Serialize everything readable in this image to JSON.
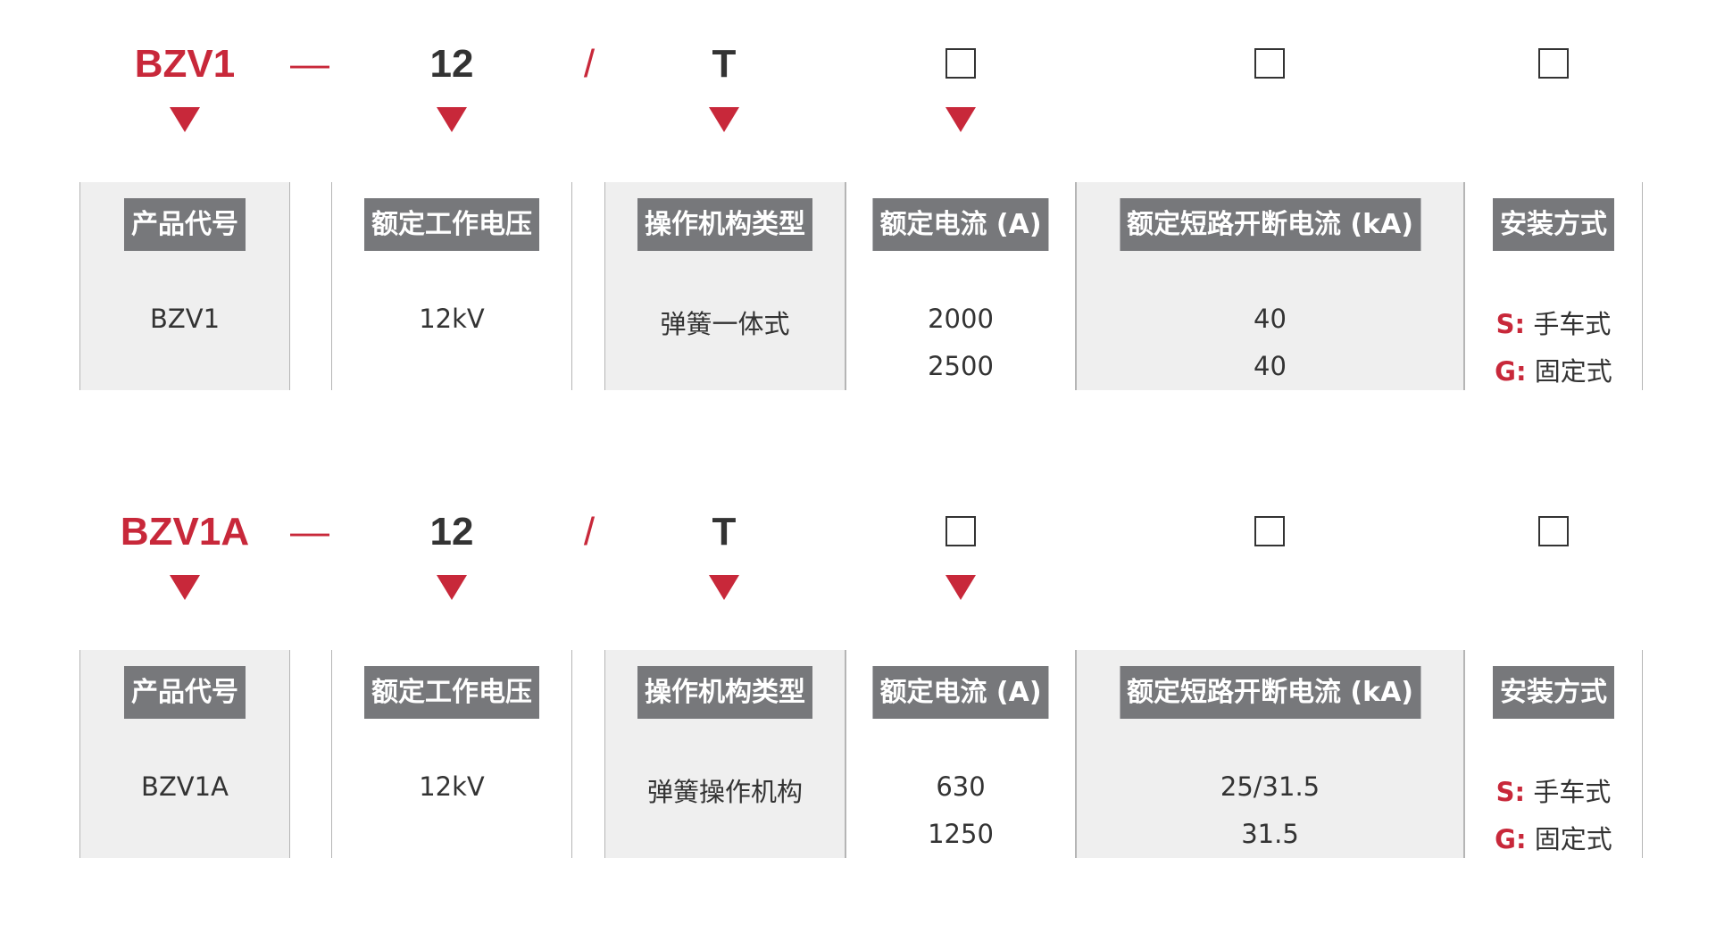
{
  "colors": {
    "accent": "#c8283a",
    "header_bg": "#77787b",
    "panel_bg": "#efefef",
    "text": "#333333"
  },
  "placeholder_icon": "empty-square-icon",
  "pointer_icon": "red-down-triangle-icon",
  "models": [
    {
      "code": {
        "product": "BZV1",
        "dash": "—",
        "voltage": "12",
        "slash": "/",
        "mechanism": "T"
      },
      "columns": [
        {
          "header": "产品代号",
          "values": [
            "BZV1"
          ]
        },
        {
          "header": "额定工作电压",
          "values": [
            "12kV"
          ]
        },
        {
          "header": "操作机构类型",
          "values": [
            "弹簧一体式"
          ]
        },
        {
          "header": "额定电流 (A)",
          "values": [
            "2000",
            "2500"
          ]
        },
        {
          "header": "额定短路开断电流 (kA)",
          "values": [
            "40",
            "40"
          ]
        },
        {
          "header": "安装方式",
          "options": [
            {
              "key": "S:",
              "label": "手车式"
            },
            {
              "key": "G:",
              "label": "固定式"
            }
          ]
        }
      ]
    },
    {
      "code": {
        "product": "BZV1A",
        "dash": "—",
        "voltage": "12",
        "slash": "/",
        "mechanism": "T"
      },
      "columns": [
        {
          "header": "产品代号",
          "values": [
            "BZV1A"
          ]
        },
        {
          "header": "额定工作电压",
          "values": [
            "12kV"
          ]
        },
        {
          "header": "操作机构类型",
          "values": [
            "弹簧操作机构"
          ]
        },
        {
          "header": "额定电流 (A)",
          "values": [
            "630",
            "1250"
          ]
        },
        {
          "header": "额定短路开断电流 (kA)",
          "values": [
            "25/31.5",
            "31.5"
          ]
        },
        {
          "header": "安装方式",
          "options": [
            {
              "key": "S:",
              "label": "手车式"
            },
            {
              "key": "G:",
              "label": "固定式"
            }
          ]
        }
      ]
    }
  ]
}
